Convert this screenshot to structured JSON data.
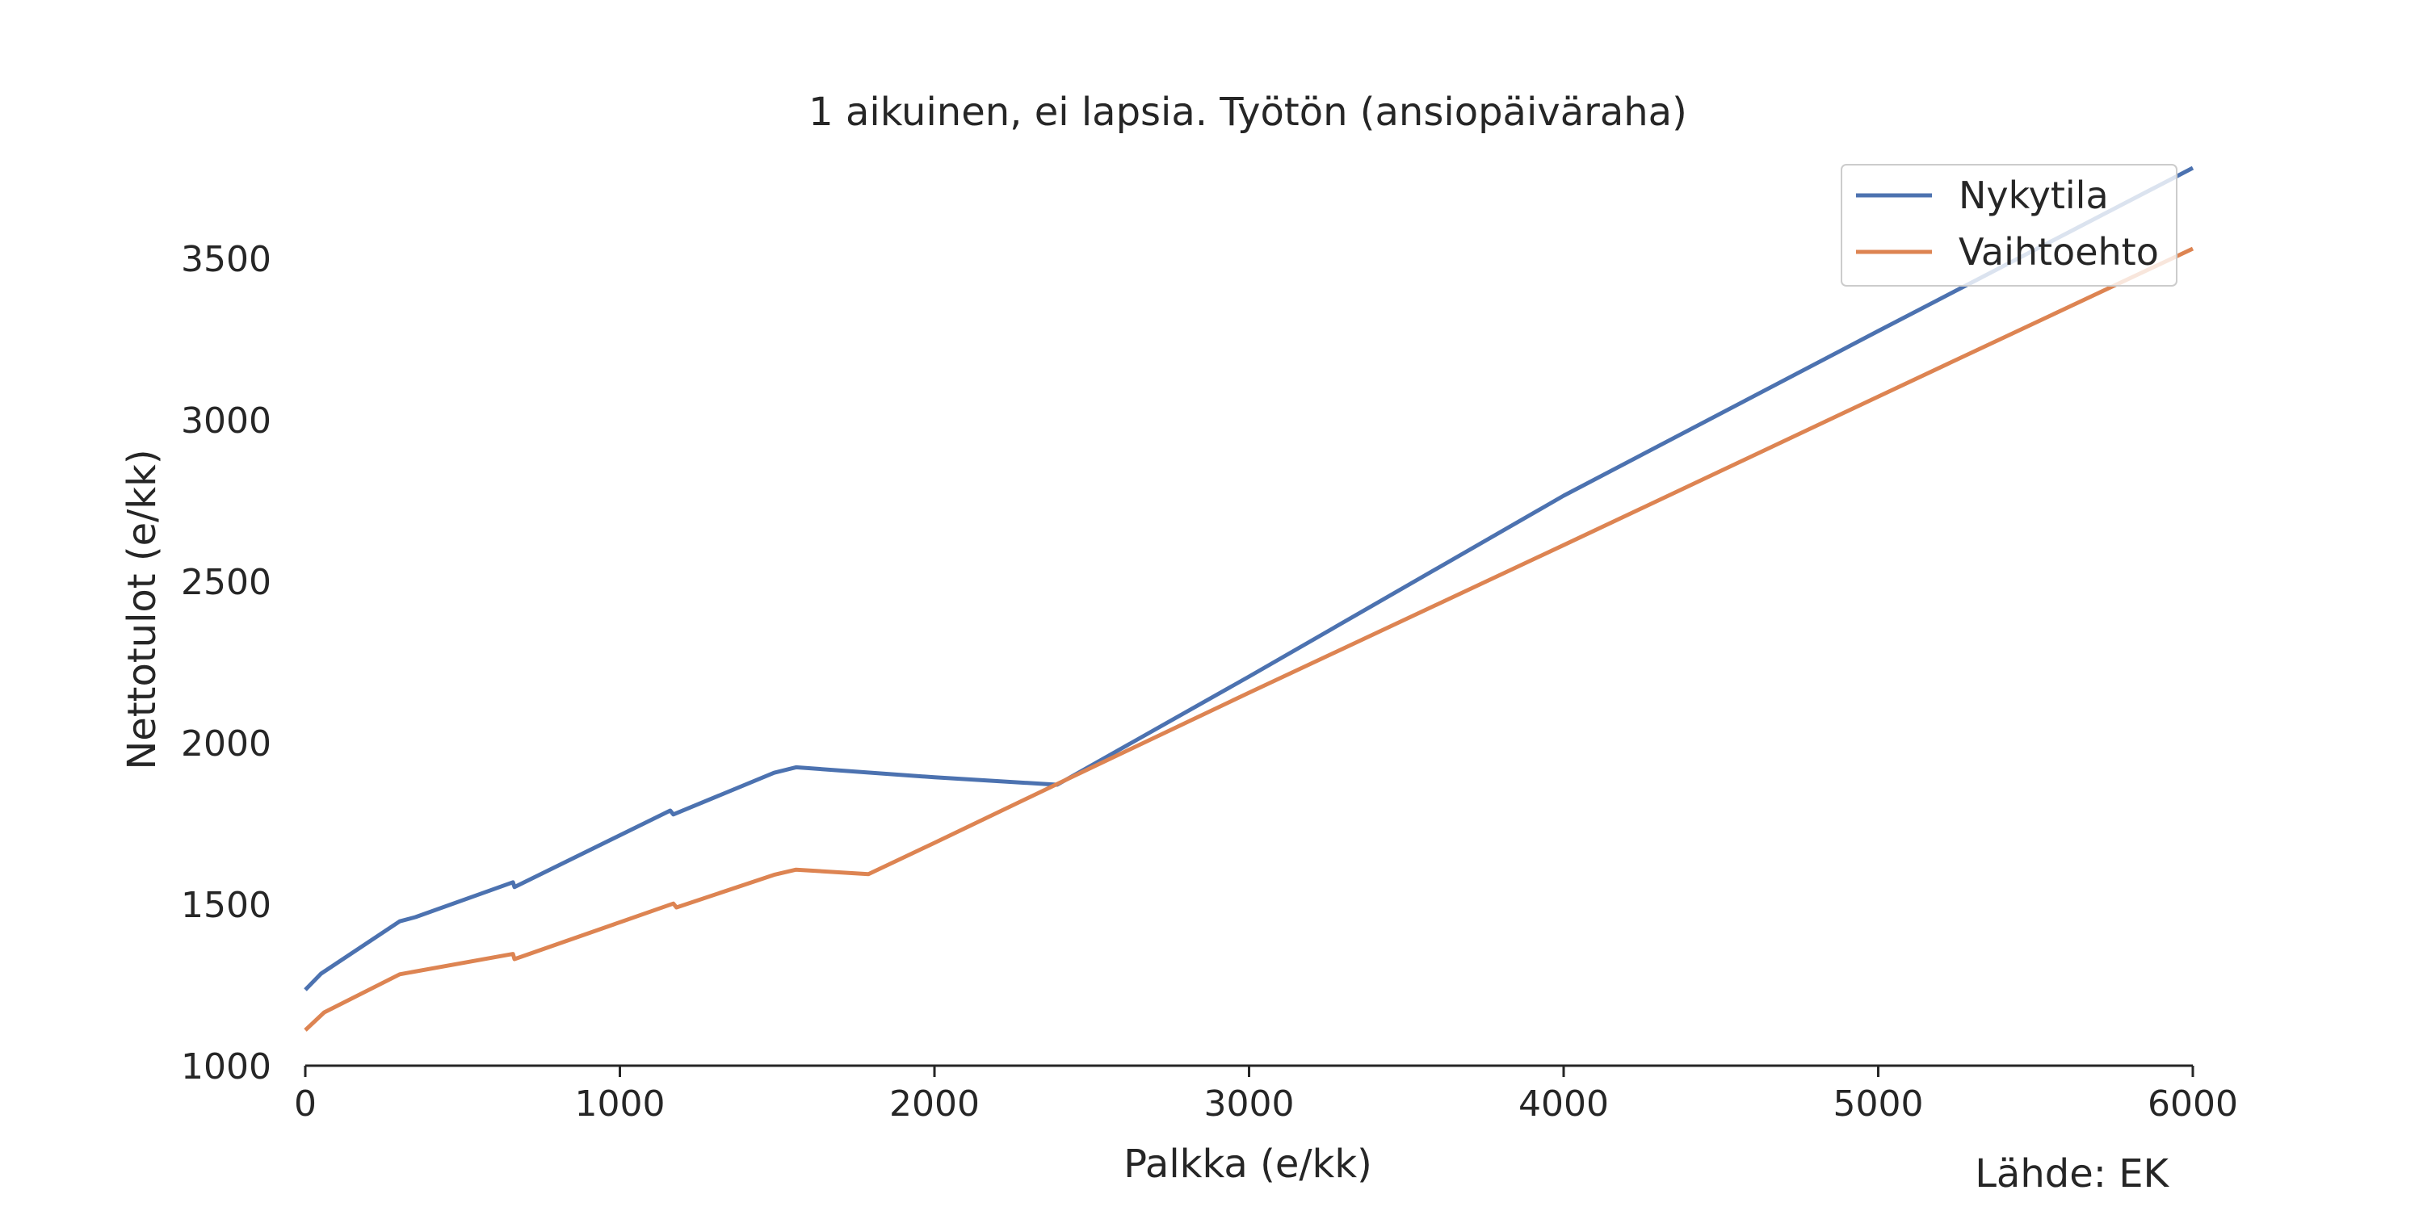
{
  "chart_data": {
    "type": "line",
    "title": "1 aikuinen, ei lapsia. Työtön (ansiopäiväraha)",
    "xlabel": "Palkka (e/kk)",
    "ylabel": "Nettotulot (e/kk)",
    "source": "Lähde: EK",
    "xlim": [
      0,
      6000
    ],
    "ylim": [
      1000,
      3800
    ],
    "xticks": [
      0,
      1000,
      2000,
      3000,
      4000,
      5000,
      6000
    ],
    "yticks": [
      1000,
      1500,
      2000,
      2500,
      3000,
      3500
    ],
    "grid": false,
    "legend_position": "top-right",
    "series": [
      {
        "name": "Nykytila",
        "color": "#4c72b0",
        "x": [
          0,
          50,
          300,
          350,
          660,
          665,
          1160,
          1170,
          1490,
          1560,
          2000,
          2390,
          3000,
          4000,
          5000,
          6000
        ],
        "y": [
          1235,
          1285,
          1447,
          1460,
          1568,
          1553,
          1790,
          1778,
          1907,
          1924,
          1893,
          1870,
          2205,
          2765,
          3275,
          3780
        ]
      },
      {
        "name": "Vaihtoehto",
        "color": "#dd8452",
        "x": [
          0,
          60,
          300,
          660,
          665,
          1170,
          1180,
          1490,
          1560,
          1790,
          2000,
          2400,
          3000,
          4000,
          5000,
          6000
        ],
        "y": [
          1110,
          1165,
          1283,
          1346,
          1330,
          1502,
          1490,
          1591,
          1607,
          1593,
          1690,
          1877,
          2155,
          2612,
          3072,
          3530
        ]
      }
    ]
  }
}
